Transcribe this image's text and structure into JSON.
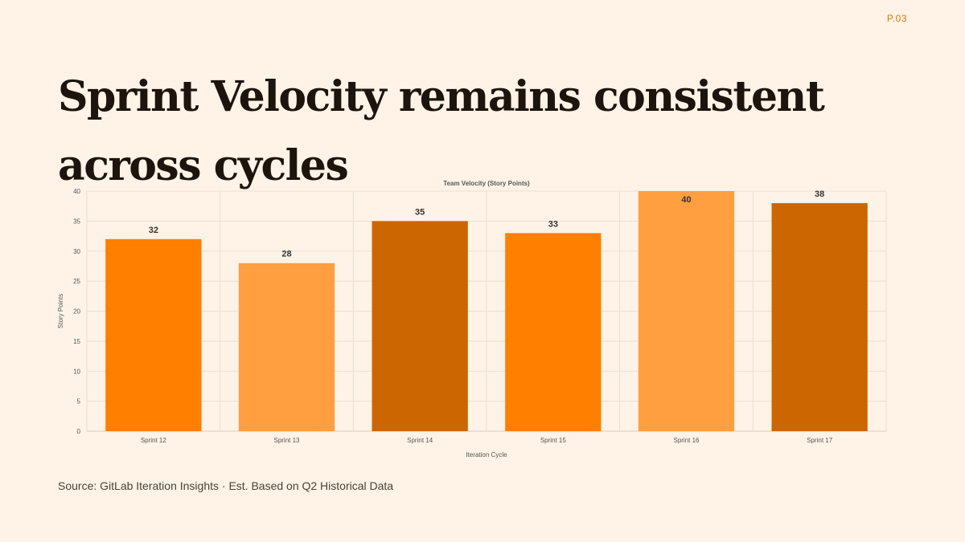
{
  "page": {
    "number": "P.03",
    "title": "Sprint Velocity remains consistent across cycles",
    "source": "Source: GitLab Iteration Insights · Est. Based on Q2 Historical Data"
  },
  "colors": {
    "background": "#FEF3E6",
    "title": "#1C140D",
    "accent": "#D97706",
    "bar_palette": [
      "#FF7F00",
      "#FF9F40",
      "#CC6600"
    ]
  },
  "chart_data": {
    "type": "bar",
    "title": "Team Velocity (Story Points)",
    "xlabel": "Iteration Cycle",
    "ylabel": "Story Points",
    "categories": [
      "Sprint 12",
      "Sprint 13",
      "Sprint 14",
      "Sprint 15",
      "Sprint 16",
      "Sprint 17"
    ],
    "values": [
      32,
      28,
      35,
      33,
      40,
      38
    ],
    "bar_colors": [
      "#FF7F00",
      "#FF9F40",
      "#CC6600",
      "#FF7F00",
      "#FF9F40",
      "#CC6600"
    ],
    "ylim": [
      0,
      40
    ],
    "yticks": [
      0,
      5,
      10,
      15,
      20,
      25,
      30,
      35,
      40
    ],
    "grid": true,
    "data_labels": true,
    "legend": "none"
  }
}
